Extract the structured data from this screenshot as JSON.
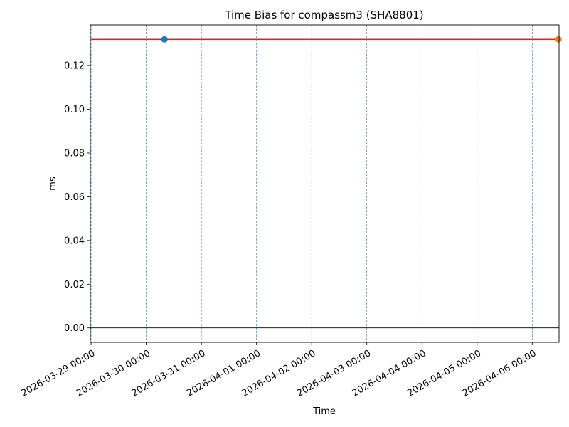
{
  "chart_data": {
    "type": "line",
    "title": "Time Bias for compassm3 (SHA8801)",
    "xlabel": "Time",
    "ylabel": "ms",
    "x_ticks": [
      "2026-03-29 00:00",
      "2026-03-30 00:00",
      "2026-03-31 00:00",
      "2026-04-01 00:00",
      "2026-04-02 00:00",
      "2026-04-03 00:00",
      "2026-04-04 00:00",
      "2026-04-05 00:00",
      "2026-04-06 00:00"
    ],
    "y_ticks": [
      "0.00",
      "0.02",
      "0.04",
      "0.06",
      "0.08",
      "0.10",
      "0.12"
    ],
    "xlim": [
      "2026-03-28 23:40",
      "2026-04-06 11:40"
    ],
    "ylim": [
      -0.0066,
      0.1386
    ],
    "grid": "vertical-dashed",
    "series": [
      {
        "color": "#d62728",
        "points": [
          {
            "x": "2026-03-29 00:00",
            "y": 0.132
          },
          {
            "x": "2026-04-06 11:40",
            "y": 0.132
          }
        ]
      }
    ],
    "markers": [
      {
        "x": "2026-03-30 07:55",
        "y": 0.132,
        "color": "#1f77b4"
      },
      {
        "x": "2026-04-06 11:25",
        "y": 0.132,
        "color": "#ff7f0e"
      }
    ],
    "reference_line": {
      "y": 0,
      "color": "#000000"
    }
  }
}
